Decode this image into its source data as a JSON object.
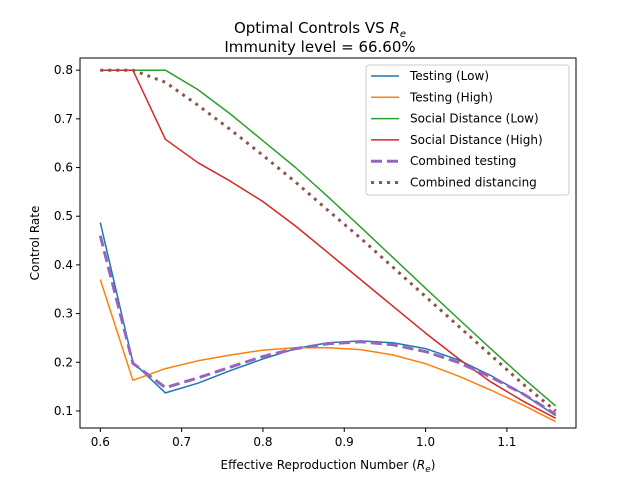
{
  "chart_data": {
    "type": "line",
    "title_line1": "Optimal Controls VS ",
    "title_symbol": "R",
    "title_subscript": "e",
    "title_line2": "Immunity level = 66.60%",
    "xlabel": "Effective Reproduction Number (",
    "xlabel_symbol": "R",
    "xlabel_subscript": "e",
    "xlabel_close": ")",
    "ylabel": "Control Rate",
    "xlim": [
      0.575,
      1.185
    ],
    "ylim": [
      0.065,
      0.825
    ],
    "xticks": [
      0.6,
      0.7,
      0.8,
      0.9,
      1.0,
      1.1
    ],
    "xtick_labels": [
      "0.6",
      "0.7",
      "0.8",
      "0.9",
      "1.0",
      "1.1"
    ],
    "yticks": [
      0.1,
      0.2,
      0.3,
      0.4,
      0.5,
      0.6,
      0.7,
      0.8
    ],
    "ytick_labels": [
      "0.1",
      "0.2",
      "0.3",
      "0.4",
      "0.5",
      "0.6",
      "0.7",
      "0.8"
    ],
    "legend_position": "top-right",
    "x": [
      0.6,
      0.64,
      0.68,
      0.72,
      0.76,
      0.8,
      0.84,
      0.88,
      0.92,
      0.96,
      1.0,
      1.04,
      1.08,
      1.12,
      1.16
    ],
    "series": [
      {
        "name": "Testing (Low)",
        "color": "#1f77b4",
        "dash": "solid",
        "width": 1.5,
        "values": [
          0.487,
          0.2,
          0.137,
          0.157,
          0.183,
          0.207,
          0.228,
          0.24,
          0.244,
          0.24,
          0.228,
          0.205,
          0.173,
          0.135,
          0.09
        ]
      },
      {
        "name": "Testing (High)",
        "color": "#ff7f0e",
        "dash": "solid",
        "width": 1.5,
        "values": [
          0.37,
          0.163,
          0.187,
          0.203,
          0.215,
          0.225,
          0.23,
          0.23,
          0.226,
          0.215,
          0.197,
          0.172,
          0.143,
          0.112,
          0.078
        ]
      },
      {
        "name": "Social Distance (Low)",
        "color": "#2ca02c",
        "dash": "solid",
        "width": 1.5,
        "values": [
          0.8,
          0.8,
          0.8,
          0.76,
          0.71,
          0.655,
          0.6,
          0.54,
          0.478,
          0.415,
          0.352,
          0.29,
          0.228,
          0.168,
          0.11
        ]
      },
      {
        "name": "Social Distance (High)",
        "color": "#d62728",
        "dash": "solid",
        "width": 1.5,
        "values": [
          0.8,
          0.8,
          0.658,
          0.61,
          0.572,
          0.53,
          0.48,
          0.425,
          0.37,
          0.315,
          0.26,
          0.208,
          0.16,
          0.12,
          0.085
        ]
      },
      {
        "name": "Combined testing",
        "color": "#9467bd",
        "dash": "dashed",
        "width": 3,
        "values": [
          0.46,
          0.198,
          0.148,
          0.168,
          0.19,
          0.212,
          0.228,
          0.238,
          0.242,
          0.236,
          0.222,
          0.2,
          0.17,
          0.135,
          0.093
        ]
      },
      {
        "name": "Combined distancing",
        "color": "#8c564b",
        "dash": "dotted",
        "width": 3,
        "values": [
          0.8,
          0.8,
          0.775,
          0.728,
          0.678,
          0.625,
          0.57,
          0.512,
          0.455,
          0.395,
          0.335,
          0.275,
          0.215,
          0.155,
          0.1
        ]
      }
    ]
  }
}
